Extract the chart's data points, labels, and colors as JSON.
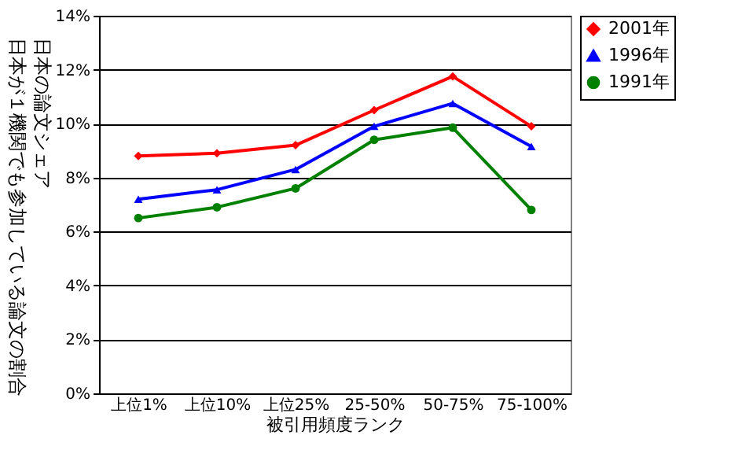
{
  "chart_data": {
    "type": "line",
    "xlabel": "被引用頻度ランク",
    "ylabel": "日本の論文シェア",
    "annotations": [
      "日本が１機関でも参加している論文の割合"
    ],
    "categories": [
      "上位1%",
      "上位10%",
      "上位25%",
      "25-50%",
      "50-75%",
      "75-100%"
    ],
    "series": [
      {
        "name": "2001年",
        "color": "#ff0000",
        "marker": "diamond",
        "values": [
          8.8,
          8.9,
          9.2,
          10.5,
          11.75,
          9.9
        ]
      },
      {
        "name": "1996年",
        "color": "#0000ff",
        "marker": "triangle",
        "values": [
          7.2,
          7.55,
          8.3,
          9.9,
          10.75,
          9.15
        ]
      },
      {
        "name": "1991年",
        "color": "#008000",
        "marker": "circle",
        "values": [
          6.5,
          6.9,
          7.6,
          9.4,
          9.85,
          6.8
        ]
      }
    ],
    "ylim": [
      0,
      14
    ],
    "yticks": [
      {
        "value": 0,
        "label": "0%"
      },
      {
        "value": 2,
        "label": "2%"
      },
      {
        "value": 4,
        "label": "4%"
      },
      {
        "value": 6,
        "label": "6%"
      },
      {
        "value": 8,
        "label": "8%"
      },
      {
        "value": 10,
        "label": "10%"
      },
      {
        "value": 12,
        "label": "12%"
      },
      {
        "value": 14,
        "label": "14%"
      }
    ],
    "grid": "y",
    "legend": "right"
  }
}
